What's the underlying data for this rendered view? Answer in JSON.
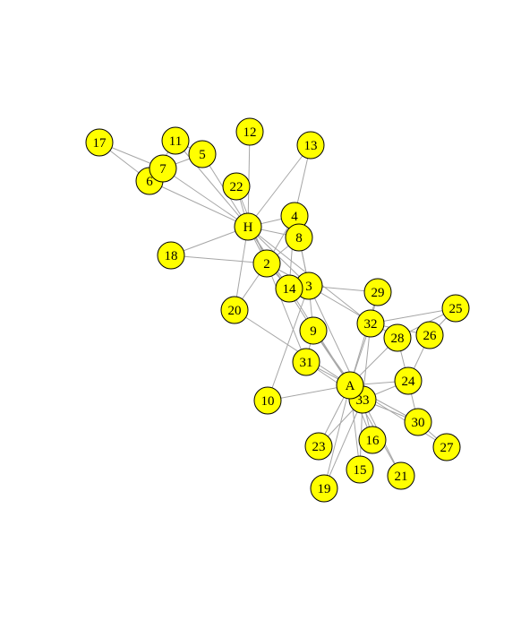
{
  "colors": {
    "background": "#ffffff",
    "node_fill": "#ffff00",
    "node_stroke": "#000000",
    "edge": "#a6a6a6",
    "label": "#000000"
  },
  "graph": {
    "nodes": [
      {
        "id": "H",
        "label": "H"
      },
      {
        "id": "2",
        "label": "2"
      },
      {
        "id": "3",
        "label": "3"
      },
      {
        "id": "4",
        "label": "4"
      },
      {
        "id": "5",
        "label": "5"
      },
      {
        "id": "6",
        "label": "6"
      },
      {
        "id": "7",
        "label": "7"
      },
      {
        "id": "8",
        "label": "8"
      },
      {
        "id": "9",
        "label": "9"
      },
      {
        "id": "10",
        "label": "10"
      },
      {
        "id": "11",
        "label": "11"
      },
      {
        "id": "12",
        "label": "12"
      },
      {
        "id": "13",
        "label": "13"
      },
      {
        "id": "14",
        "label": "14"
      },
      {
        "id": "15",
        "label": "15"
      },
      {
        "id": "16",
        "label": "16"
      },
      {
        "id": "17",
        "label": "17"
      },
      {
        "id": "18",
        "label": "18"
      },
      {
        "id": "19",
        "label": "19"
      },
      {
        "id": "20",
        "label": "20"
      },
      {
        "id": "21",
        "label": "21"
      },
      {
        "id": "22",
        "label": "22"
      },
      {
        "id": "23",
        "label": "23"
      },
      {
        "id": "24",
        "label": "24"
      },
      {
        "id": "25",
        "label": "25"
      },
      {
        "id": "26",
        "label": "26"
      },
      {
        "id": "27",
        "label": "27"
      },
      {
        "id": "28",
        "label": "28"
      },
      {
        "id": "29",
        "label": "29"
      },
      {
        "id": "30",
        "label": "30"
      },
      {
        "id": "31",
        "label": "31"
      },
      {
        "id": "32",
        "label": "32"
      },
      {
        "id": "33",
        "label": "33"
      },
      {
        "id": "A",
        "label": "A"
      }
    ],
    "edges": [
      [
        "H",
        "2"
      ],
      [
        "H",
        "3"
      ],
      [
        "H",
        "4"
      ],
      [
        "H",
        "5"
      ],
      [
        "H",
        "6"
      ],
      [
        "H",
        "7"
      ],
      [
        "H",
        "8"
      ],
      [
        "H",
        "9"
      ],
      [
        "H",
        "11"
      ],
      [
        "H",
        "12"
      ],
      [
        "H",
        "13"
      ],
      [
        "H",
        "14"
      ],
      [
        "H",
        "18"
      ],
      [
        "H",
        "20"
      ],
      [
        "H",
        "22"
      ],
      [
        "H",
        "32"
      ],
      [
        "2",
        "3"
      ],
      [
        "2",
        "4"
      ],
      [
        "2",
        "8"
      ],
      [
        "2",
        "14"
      ],
      [
        "2",
        "18"
      ],
      [
        "2",
        "20"
      ],
      [
        "2",
        "22"
      ],
      [
        "2",
        "31"
      ],
      [
        "3",
        "4"
      ],
      [
        "3",
        "8"
      ],
      [
        "3",
        "9"
      ],
      [
        "3",
        "10"
      ],
      [
        "3",
        "14"
      ],
      [
        "3",
        "28"
      ],
      [
        "3",
        "29"
      ],
      [
        "3",
        "33"
      ],
      [
        "4",
        "8"
      ],
      [
        "4",
        "13"
      ],
      [
        "4",
        "14"
      ],
      [
        "5",
        "7"
      ],
      [
        "5",
        "11"
      ],
      [
        "6",
        "7"
      ],
      [
        "6",
        "11"
      ],
      [
        "6",
        "17"
      ],
      [
        "7",
        "17"
      ],
      [
        "9",
        "31"
      ],
      [
        "9",
        "33"
      ],
      [
        "9",
        "A"
      ],
      [
        "10",
        "A"
      ],
      [
        "14",
        "A"
      ],
      [
        "15",
        "33"
      ],
      [
        "15",
        "A"
      ],
      [
        "16",
        "33"
      ],
      [
        "16",
        "A"
      ],
      [
        "19",
        "33"
      ],
      [
        "19",
        "A"
      ],
      [
        "20",
        "A"
      ],
      [
        "21",
        "33"
      ],
      [
        "21",
        "A"
      ],
      [
        "23",
        "33"
      ],
      [
        "23",
        "A"
      ],
      [
        "24",
        "26"
      ],
      [
        "24",
        "28"
      ],
      [
        "24",
        "30"
      ],
      [
        "24",
        "33"
      ],
      [
        "24",
        "A"
      ],
      [
        "25",
        "26"
      ],
      [
        "25",
        "28"
      ],
      [
        "25",
        "32"
      ],
      [
        "26",
        "32"
      ],
      [
        "27",
        "30"
      ],
      [
        "27",
        "A"
      ],
      [
        "28",
        "A"
      ],
      [
        "29",
        "32"
      ],
      [
        "29",
        "A"
      ],
      [
        "30",
        "33"
      ],
      [
        "30",
        "A"
      ],
      [
        "31",
        "33"
      ],
      [
        "31",
        "A"
      ],
      [
        "32",
        "33"
      ],
      [
        "32",
        "A"
      ],
      [
        "33",
        "A"
      ]
    ]
  }
}
